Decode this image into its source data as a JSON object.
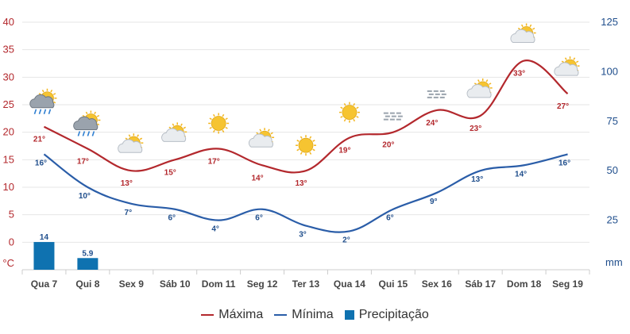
{
  "chart_data": {
    "type": "line",
    "categories": [
      "Qua 7",
      "Qui 8",
      "Sex 9",
      "Sáb 10",
      "Dom 11",
      "Seg 12",
      "Ter 13",
      "Qua 14",
      "Qui 15",
      "Sex 16",
      "Sáb 17",
      "Dom 18",
      "Seg 19"
    ],
    "series": [
      {
        "name": "Máxima",
        "type": "line",
        "axis": "left",
        "color": "#b3282d",
        "values": [
          21,
          17,
          13,
          15,
          17,
          14,
          13,
          19,
          20,
          24,
          23,
          33,
          27
        ],
        "labels": [
          "21°",
          "17°",
          "13°",
          "15°",
          "17°",
          "14°",
          "13°",
          "19°",
          "20°",
          "24°",
          "23°",
          "33°",
          "27°"
        ]
      },
      {
        "name": "Mínima",
        "type": "line",
        "axis": "left",
        "color": "#2a5da8",
        "values": [
          16,
          10,
          7,
          6,
          4,
          6,
          3,
          2,
          6,
          9,
          13,
          14,
          16
        ],
        "labels": [
          "16°",
          "10°",
          "7°",
          "6°",
          "4°",
          "6°",
          "3°",
          "2°",
          "6°",
          "9°",
          "13°",
          "14°",
          "16°"
        ]
      },
      {
        "name": "Precipitação",
        "type": "bar",
        "axis": "right",
        "color": "#0f72b0",
        "values": [
          14,
          5.9,
          null,
          null,
          null,
          null,
          null,
          null,
          null,
          null,
          null,
          null,
          null
        ],
        "labels": [
          "14",
          "5.9",
          "",
          "",
          "",
          "",
          "",
          "",
          "",
          "",
          "",
          "",
          ""
        ]
      }
    ],
    "y_left": {
      "unit": "°C",
      "ylim": [
        -5,
        40
      ],
      "ticks": [
        "40",
        "35",
        "30",
        "25",
        "20",
        "15",
        "10",
        "5",
        "0"
      ],
      "tick_values": [
        40,
        35,
        30,
        25,
        20,
        15,
        10,
        5,
        0
      ]
    },
    "y_right": {
      "unit": "mm",
      "ylim": [
        0,
        125
      ],
      "ticks": [
        "125",
        "100",
        "75",
        "50",
        "25"
      ],
      "tick_values": [
        125,
        100,
        75,
        50,
        25
      ]
    },
    "grid": true,
    "legend_position": "bottom-center",
    "weather_icons": [
      "sun-cloud-rain-icon",
      "sun-cloud-rain-icon",
      "sun-cloud-icon",
      "sun-cloud-icon",
      "sun-icon",
      "sun-cloud-icon",
      "sun-icon",
      "sun-icon",
      "fog-icon",
      "fog-icon",
      "sun-cloud-icon",
      "sun-cloud-icon",
      "sun-cloud-icon"
    ]
  },
  "legend": {
    "max_label": "Máxima",
    "min_label": "Mínima",
    "prec_label": "Precipitação"
  }
}
